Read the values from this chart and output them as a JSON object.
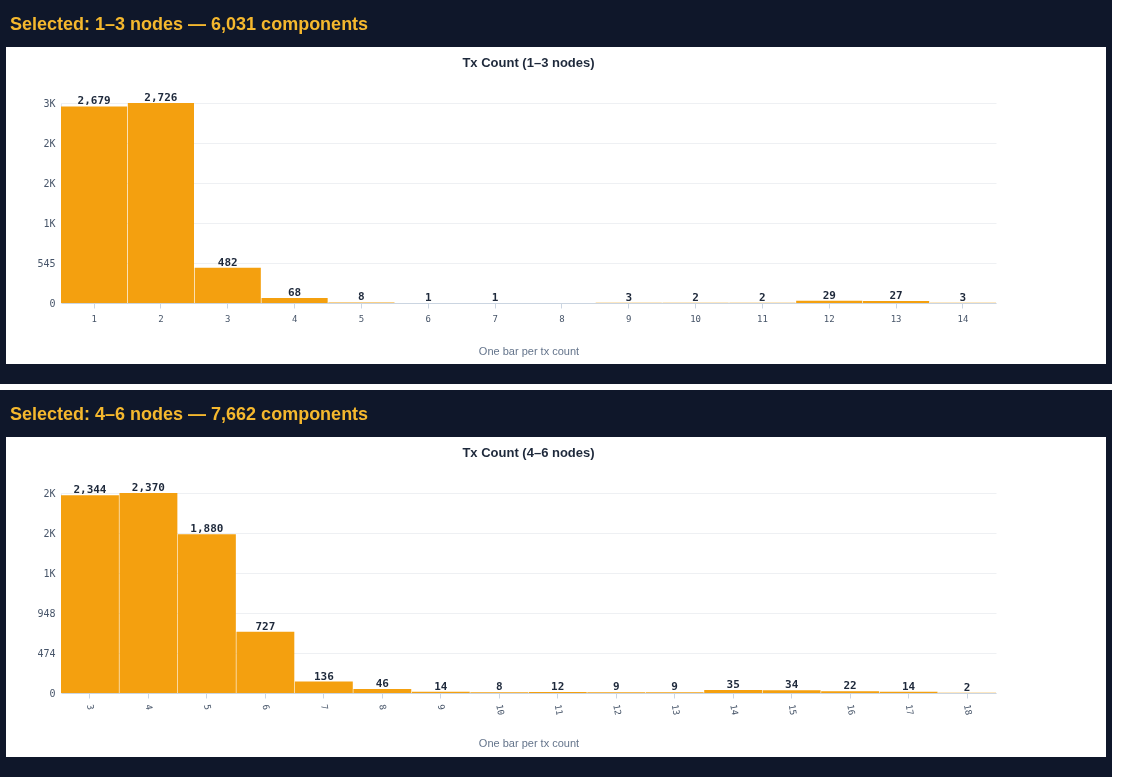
{
  "chart_data": [
    {
      "type": "bar",
      "title": "Selected: 1–3 nodes — 6,031 components",
      "subtitle": "Tx Count (1–3 nodes)",
      "xlabel": "One bar per tx count",
      "categories": [
        "1",
        "2",
        "3",
        "4",
        "5",
        "6",
        "7",
        "8",
        "9",
        "10",
        "11",
        "12",
        "13",
        "14"
      ],
      "values": [
        2679,
        2726,
        482,
        68,
        8,
        1,
        1,
        0,
        3,
        2,
        2,
        29,
        27,
        3
      ],
      "value_labels": [
        "2,679",
        "2,726",
        "482",
        "68",
        "8",
        "1",
        "1",
        null,
        "3",
        "2",
        "2",
        "29",
        "27",
        "3"
      ],
      "color": "#f4a00f",
      "ylim": [
        0,
        2726
      ],
      "yticks": [
        0,
        545,
        {
          "value": 1090,
          "label": "1K"
        },
        {
          "value": 1635,
          "label": "2K"
        },
        {
          "value": 2180,
          "label": "2K"
        },
        {
          "value": 2726,
          "label": "3K"
        }
      ],
      "grid": "y"
    },
    {
      "type": "bar",
      "title": "Selected: 4–6 nodes — 7,662 components",
      "subtitle": "Tx Count (4–6 nodes)",
      "xlabel": "One bar per tx count",
      "categories": [
        "3",
        "4",
        "5",
        "6",
        "7",
        "8",
        "9",
        "10",
        "11",
        "12",
        "13",
        "14",
        "15",
        "16",
        "17",
        "18"
      ],
      "values": [
        2344,
        2370,
        1880,
        727,
        136,
        46,
        14,
        8,
        12,
        9,
        9,
        35,
        34,
        22,
        14,
        2
      ],
      "value_labels": [
        "2,344",
        "2,370",
        "1,880",
        "727",
        "136",
        "46",
        "14",
        "8",
        "12",
        "9",
        "9",
        "35",
        "34",
        "22",
        "14",
        "2"
      ],
      "color": "#f4a00f",
      "ylim": [
        0,
        2370
      ],
      "yticks": [
        0,
        474,
        948,
        {
          "value": 1422,
          "label": "1K"
        },
        {
          "value": 1896,
          "label": "2K"
        },
        {
          "value": 2370,
          "label": "2K"
        }
      ],
      "grid": "y"
    }
  ]
}
